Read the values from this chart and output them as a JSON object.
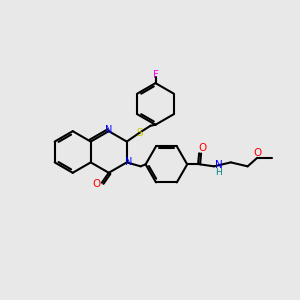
{
  "background_color": "#e8e8e8",
  "atom_colors": {
    "N": "#0000ff",
    "O": "#ff0000",
    "S": "#cccc00",
    "F": "#ff00ff",
    "H": "#008080",
    "C": "#000000"
  },
  "figsize": [
    3.0,
    3.0
  ],
  "dpi": 100
}
